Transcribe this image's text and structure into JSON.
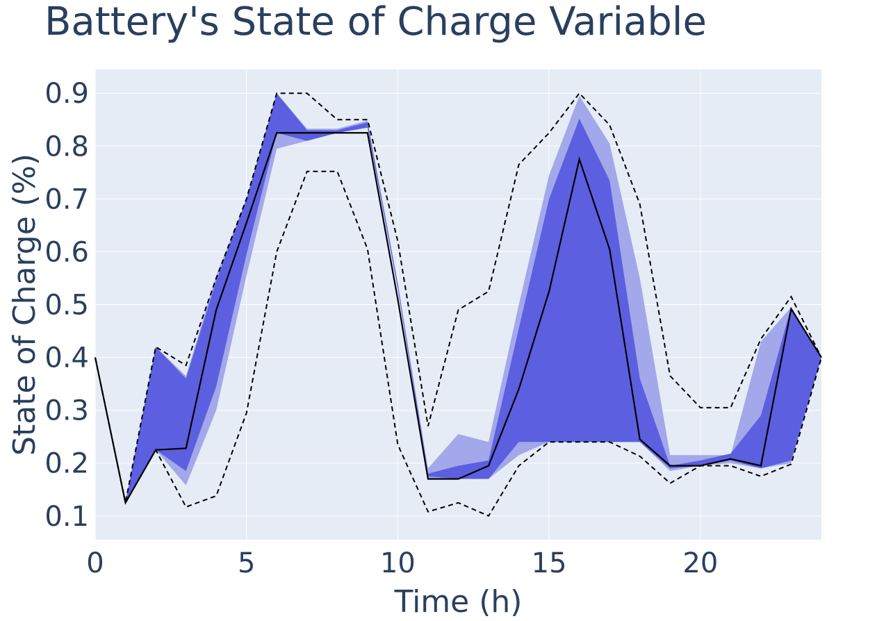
{
  "chart_data": {
    "type": "line",
    "title": "Battery's State of Charge Variable",
    "xlabel": "Time (h)",
    "ylabel": "State of Charge (%)",
    "xlim": [
      0,
      24
    ],
    "ylim": [
      0.055,
      0.945
    ],
    "x_ticks": [
      0,
      5,
      10,
      15,
      20
    ],
    "y_ticks": [
      0.1,
      0.2,
      0.3,
      0.4,
      0.5,
      0.6,
      0.7,
      0.8,
      0.9
    ],
    "grid": true,
    "colors": {
      "plot_bg": "#e5ecf6",
      "grid": "#ffffff",
      "outer_band": "#a3a8ea",
      "inner_band": "#5c5fdf",
      "line": "#000000",
      "text": "#2a3f5f"
    },
    "x": [
      0,
      1,
      2,
      3,
      4,
      5,
      6,
      7,
      8,
      9,
      10,
      11,
      12,
      13,
      14,
      15,
      16,
      17,
      18,
      19,
      20,
      21,
      22,
      23,
      24
    ],
    "series": [
      {
        "role": "dashed_upper",
        "style": "dashed",
        "values": [
          0.4,
          0.125,
          0.42,
          0.385,
          0.55,
          0.7,
          0.9,
          0.9,
          0.85,
          0.85,
          0.62,
          0.27,
          0.49,
          0.525,
          0.765,
          0.825,
          0.9,
          0.84,
          0.69,
          0.365,
          0.305,
          0.305,
          0.435,
          0.515,
          0.4
        ]
      },
      {
        "role": "dashed_lower",
        "style": "dashed",
        "values": [
          0.4,
          0.125,
          0.225,
          0.117,
          0.138,
          0.295,
          0.6,
          0.752,
          0.752,
          0.605,
          0.235,
          0.108,
          0.125,
          0.1,
          0.195,
          0.24,
          0.24,
          0.24,
          0.213,
          0.162,
          0.195,
          0.195,
          0.175,
          0.198,
          0.4
        ]
      },
      {
        "role": "outer_band_upper",
        "style": "fill",
        "values": [
          0.4,
          0.125,
          0.42,
          0.365,
          0.555,
          0.7,
          0.9,
          0.833,
          0.833,
          0.848,
          0.54,
          0.19,
          0.255,
          0.24,
          0.5,
          0.745,
          0.895,
          0.805,
          0.55,
          0.215,
          0.215,
          0.215,
          0.43,
          0.495,
          0.4
        ]
      },
      {
        "role": "outer_band_lower",
        "style": "fill",
        "values": [
          0.4,
          0.125,
          0.225,
          0.158,
          0.3,
          0.555,
          0.795,
          0.81,
          0.825,
          0.835,
          0.53,
          0.17,
          0.17,
          0.17,
          0.215,
          0.24,
          0.24,
          0.24,
          0.24,
          0.185,
          0.195,
          0.2,
          0.19,
          0.2,
          0.4
        ]
      },
      {
        "role": "inner_band_upper",
        "style": "fill",
        "values": [
          0.4,
          0.125,
          0.42,
          0.36,
          0.545,
          0.7,
          0.9,
          0.83,
          0.83,
          0.845,
          0.54,
          0.18,
          0.195,
          0.205,
          0.455,
          0.7,
          0.852,
          0.735,
          0.36,
          0.195,
          0.205,
          0.218,
          0.29,
          0.495,
          0.4
        ]
      },
      {
        "role": "inner_band_lower",
        "style": "fill",
        "values": [
          0.4,
          0.125,
          0.225,
          0.185,
          0.345,
          0.595,
          0.825,
          0.81,
          0.825,
          0.835,
          0.53,
          0.175,
          0.17,
          0.17,
          0.24,
          0.24,
          0.24,
          0.24,
          0.24,
          0.19,
          0.195,
          0.205,
          0.19,
          0.205,
          0.4
        ]
      },
      {
        "role": "solid_line",
        "style": "solid",
        "values": [
          0.4,
          0.125,
          0.225,
          0.228,
          0.49,
          0.655,
          0.825,
          0.825,
          0.825,
          0.825,
          0.51,
          0.17,
          0.17,
          0.195,
          0.34,
          0.525,
          0.775,
          0.605,
          0.245,
          0.195,
          0.195,
          0.208,
          0.195,
          0.492,
          0.4
        ]
      }
    ]
  }
}
